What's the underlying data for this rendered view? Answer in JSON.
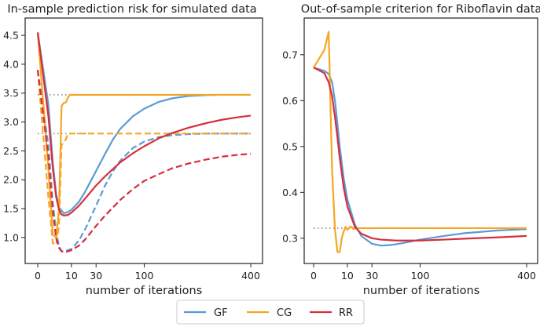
{
  "chart_data": [
    {
      "type": "line",
      "title": "In-sample prediction risk for simulated data",
      "xlabel": "number of iterations",
      "ylabel": "",
      "x_ticks": [
        0,
        10,
        30,
        100,
        400
      ],
      "x_tick_labels": [
        "0",
        "10",
        "30",
        "100",
        "400"
      ],
      "y_ticks": [
        1.0,
        1.5,
        2.0,
        2.5,
        3.0,
        3.5,
        4.0,
        4.5
      ],
      "y_tick_labels": [
        "1.0",
        "1.5",
        "2.0",
        "2.5",
        "3.0",
        "3.5",
        "4.0",
        "4.5"
      ],
      "ylim": [
        0.55,
        4.8
      ],
      "reference_lines": [
        3.47,
        2.8
      ],
      "series": [
        {
          "name": "GF",
          "style": "solid",
          "color": "#5b9bd5",
          "x": [
            0,
            1,
            2,
            3,
            4,
            6,
            8,
            10,
            15,
            20,
            30,
            40,
            50,
            60,
            80,
            100,
            130,
            160,
            200,
            250,
            300,
            350,
            400
          ],
          "y": [
            4.55,
            3.3,
            2.3,
            1.75,
            1.52,
            1.42,
            1.44,
            1.48,
            1.62,
            1.8,
            2.15,
            2.45,
            2.7,
            2.88,
            3.1,
            3.23,
            3.35,
            3.41,
            3.45,
            3.465,
            3.47,
            3.47,
            3.47
          ]
        },
        {
          "name": "GF",
          "style": "dashed",
          "color": "#5b9bd5",
          "x": [
            0,
            1,
            2,
            3,
            4,
            5,
            6,
            8,
            10,
            15,
            20,
            30,
            40,
            50,
            60,
            80,
            100,
            130,
            160,
            200,
            250,
            300,
            350,
            400
          ],
          "y": [
            3.9,
            2.6,
            1.6,
            1.1,
            0.85,
            0.76,
            0.76,
            0.78,
            0.8,
            0.95,
            1.15,
            1.55,
            1.9,
            2.15,
            2.33,
            2.55,
            2.66,
            2.74,
            2.77,
            2.79,
            2.8,
            2.8,
            2.8,
            2.8
          ]
        },
        {
          "name": "CG",
          "style": "solid",
          "color": "#f5a623",
          "x": [
            0,
            1,
            2,
            3,
            4,
            5,
            6,
            7,
            8,
            9,
            10,
            20,
            50,
            100,
            200,
            300,
            400
          ],
          "y": [
            4.55,
            2.2,
            1.05,
            1.0,
            1.5,
            3.28,
            3.33,
            3.34,
            3.42,
            3.47,
            3.47,
            3.47,
            3.47,
            3.47,
            3.47,
            3.47,
            3.47
          ]
        },
        {
          "name": "CG",
          "style": "dashed",
          "color": "#f5a623",
          "x": [
            0,
            1,
            2,
            3,
            4,
            5,
            6,
            7,
            8,
            9,
            10,
            20,
            50,
            100,
            200,
            300,
            400
          ],
          "y": [
            3.9,
            1.7,
            0.9,
            0.88,
            1.2,
            2.6,
            2.65,
            2.7,
            2.8,
            2.8,
            2.8,
            2.8,
            2.8,
            2.8,
            2.8,
            2.8,
            2.8
          ]
        },
        {
          "name": "RR",
          "style": "solid",
          "color": "#d62f3a",
          "x": [
            0,
            1,
            2,
            3,
            4,
            5,
            6,
            8,
            10,
            15,
            20,
            30,
            40,
            60,
            80,
            100,
            130,
            160,
            200,
            250,
            300,
            350,
            400
          ],
          "y": [
            4.55,
            3.1,
            2.2,
            1.7,
            1.48,
            1.4,
            1.38,
            1.39,
            1.43,
            1.55,
            1.68,
            1.9,
            2.06,
            2.3,
            2.46,
            2.58,
            2.72,
            2.81,
            2.9,
            2.98,
            3.04,
            3.08,
            3.11
          ]
        },
        {
          "name": "RR",
          "style": "dashed",
          "color": "#d62f3a",
          "x": [
            0,
            1,
            2,
            3,
            4,
            5,
            6,
            8,
            10,
            15,
            20,
            30,
            40,
            60,
            80,
            100,
            130,
            160,
            200,
            250,
            300,
            350,
            400
          ],
          "y": [
            3.9,
            2.4,
            1.45,
            0.98,
            0.82,
            0.76,
            0.75,
            0.76,
            0.78,
            0.86,
            0.97,
            1.2,
            1.38,
            1.65,
            1.84,
            1.98,
            2.1,
            2.2,
            2.28,
            2.35,
            2.4,
            2.43,
            2.45
          ]
        }
      ]
    },
    {
      "type": "line",
      "title": "Out-of-sample criterion for Riboflavin data",
      "xlabel": "number of iterations",
      "ylabel": "",
      "x_ticks": [
        0,
        10,
        30,
        100,
        400
      ],
      "x_tick_labels": [
        "0",
        "10",
        "30",
        "100",
        "400"
      ],
      "y_ticks": [
        0.3,
        0.4,
        0.5,
        0.6,
        0.7
      ],
      "y_tick_labels": [
        "0.3",
        "0.4",
        "0.5",
        "0.6",
        "0.7"
      ],
      "ylim": [
        0.245,
        0.78
      ],
      "reference_lines": [
        0.322
      ],
      "series": [
        {
          "name": "GF",
          "style": "solid",
          "color": "#5b9bd5",
          "x": [
            0,
            1,
            2,
            3,
            4,
            5,
            6,
            8,
            10,
            15,
            20,
            30,
            40,
            50,
            60,
            80,
            100,
            150,
            200,
            300,
            400
          ],
          "y": [
            0.672,
            0.665,
            0.658,
            0.64,
            0.6,
            0.55,
            0.5,
            0.43,
            0.385,
            0.33,
            0.305,
            0.288,
            0.284,
            0.285,
            0.287,
            0.292,
            0.297,
            0.305,
            0.311,
            0.317,
            0.32
          ]
        },
        {
          "name": "CG",
          "style": "solid",
          "color": "#f5a623",
          "x": [
            0,
            1,
            2,
            3,
            4,
            5,
            6,
            7,
            8,
            9,
            10,
            11,
            12,
            14,
            16,
            20,
            30,
            50,
            100,
            200,
            400
          ],
          "y": [
            0.672,
            0.71,
            0.75,
            0.45,
            0.32,
            0.27,
            0.27,
            0.3,
            0.315,
            0.325,
            0.318,
            0.322,
            0.326,
            0.32,
            0.322,
            0.322,
            0.322,
            0.322,
            0.322,
            0.322,
            0.322
          ]
        },
        {
          "name": "RR",
          "style": "solid",
          "color": "#d62f3a",
          "x": [
            0,
            1,
            2,
            3,
            4,
            5,
            6,
            8,
            10,
            15,
            20,
            30,
            40,
            60,
            80,
            100,
            150,
            200,
            300,
            400
          ],
          "y": [
            0.672,
            0.66,
            0.64,
            0.61,
            0.565,
            0.52,
            0.475,
            0.41,
            0.37,
            0.325,
            0.31,
            0.3,
            0.297,
            0.295,
            0.295,
            0.295,
            0.297,
            0.299,
            0.302,
            0.305
          ]
        }
      ]
    }
  ],
  "legend": {
    "position": "bottom-center",
    "entries": [
      {
        "label": "GF",
        "color": "#5b9bd5"
      },
      {
        "label": "CG",
        "color": "#f5a623"
      },
      {
        "label": "RR",
        "color": "#d62f3a"
      }
    ]
  }
}
